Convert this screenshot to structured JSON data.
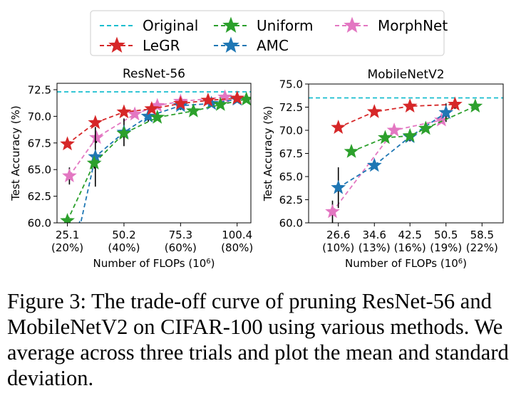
{
  "legend": {
    "entries": [
      {
        "label": "Original",
        "color": "#17becf",
        "dashed": true,
        "marker": false
      },
      {
        "label": "LeGR",
        "color": "#d62728",
        "dashed": true,
        "marker": true
      },
      {
        "label": "Uniform",
        "color": "#2ca02c",
        "dashed": true,
        "marker": true
      },
      {
        "label": "AMC",
        "color": "#1f77b4",
        "dashed": true,
        "marker": true
      },
      {
        "label": "MorphNet",
        "color": "#e377c2",
        "dashed": true,
        "marker": true
      }
    ]
  },
  "chart_data": [
    {
      "type": "line",
      "title": "ResNet-56",
      "xlabel": "Number of FLOPs (10",
      "xlabel_sup": "6",
      "xlabel_close": ")",
      "ylabel": "Test Accuracy (%)",
      "xlim": [
        20.5,
        106.5
      ],
      "ylim": [
        60.0,
        73.1
      ],
      "xticks": [
        {
          "value": 25.1,
          "label": "25.1",
          "sub": "(20%)"
        },
        {
          "value": 50.2,
          "label": "50.2",
          "sub": "(40%)"
        },
        {
          "value": 75.3,
          "label": "75.3",
          "sub": "(60%)"
        },
        {
          "value": 100.4,
          "label": "100.4",
          "sub": "(80%)"
        }
      ],
      "yticks": [
        {
          "value": 60.0,
          "label": "60.0"
        },
        {
          "value": 62.5,
          "label": "62.5"
        },
        {
          "value": 65.0,
          "label": "65.0"
        },
        {
          "value": 67.5,
          "label": "67.5"
        },
        {
          "value": 70.0,
          "label": "70.0"
        },
        {
          "value": 72.5,
          "label": "72.5"
        }
      ],
      "baseline": {
        "name": "Original",
        "y": 72.3
      },
      "series": [
        {
          "name": "LeGR",
          "x": [
            25.1,
            37.5,
            50.2,
            62.5,
            75.3,
            87.5,
            100.4
          ],
          "y": [
            67.4,
            69.4,
            70.4,
            70.7,
            71.2,
            71.5,
            71.7
          ],
          "err": [
            0.3,
            0.3,
            0.3,
            0.3,
            0.2,
            0.2,
            0.2
          ]
        },
        {
          "name": "Uniform",
          "x": [
            25.1,
            37.0,
            50.2,
            65.0,
            81.0,
            93.0,
            104.5
          ],
          "y": [
            60.2,
            65.6,
            68.4,
            69.9,
            70.5,
            71.1,
            71.6
          ],
          "err": [
            0.2,
            0.5,
            0.4,
            0.3,
            0.2,
            0.2,
            0.2
          ]
        },
        {
          "name": "AMC",
          "x": [
            30.5,
            37.5,
            50.2,
            61.0,
            75.3,
            89.0,
            100.4
          ],
          "y": [
            59.5,
            66.2,
            68.5,
            70.0,
            71.0,
            71.2,
            71.6
          ],
          "err": [
            0.0,
            2.8,
            1.3,
            0.5,
            0.4,
            0.3,
            0.2
          ]
        },
        {
          "name": "MorphNet",
          "x": [
            26.0,
            38.0,
            55.0,
            65.0,
            75.3,
            95.0
          ],
          "y": [
            64.4,
            68.0,
            70.2,
            71.0,
            71.4,
            71.8
          ],
          "err": [
            0.8,
            0.5,
            0.3,
            0.3,
            0.2,
            0.2
          ]
        }
      ]
    },
    {
      "type": "line",
      "title": "MobileNetV2",
      "xlabel": "Number of FLOPs (10",
      "xlabel_sup": "6",
      "xlabel_close": ")",
      "ylabel": "Test Accuracy (%)",
      "xlim": [
        20.0,
        63.2
      ],
      "ylim": [
        60.0,
        75.0
      ],
      "xticks": [
        {
          "value": 26.6,
          "label": "26.6",
          "sub": "(10%)"
        },
        {
          "value": 34.6,
          "label": "34.6",
          "sub": "(13%)"
        },
        {
          "value": 42.5,
          "label": "42.5",
          "sub": "(16%)"
        },
        {
          "value": 50.5,
          "label": "50.5",
          "sub": "(19%)"
        },
        {
          "value": 58.5,
          "label": "58.5",
          "sub": "(22%)"
        }
      ],
      "yticks": [
        {
          "value": 60.0,
          "label": "60.0"
        },
        {
          "value": 62.5,
          "label": "62.5"
        },
        {
          "value": 65.0,
          "label": "65.0"
        },
        {
          "value": 67.5,
          "label": "67.5"
        },
        {
          "value": 70.0,
          "label": "70.0"
        },
        {
          "value": 72.5,
          "label": "72.5"
        },
        {
          "value": 75.0,
          "label": "75.0"
        }
      ],
      "baseline": {
        "name": "Original",
        "y": 73.5
      },
      "series": [
        {
          "name": "LeGR",
          "x": [
            26.6,
            34.6,
            42.5,
            52.5
          ],
          "y": [
            70.3,
            72.0,
            72.6,
            72.8
          ],
          "err": [
            0.2,
            0.2,
            0.2,
            0.5
          ]
        },
        {
          "name": "Uniform",
          "x": [
            29.5,
            37.0,
            42.5,
            46.0,
            57.0
          ],
          "y": [
            67.7,
            69.2,
            69.4,
            70.2,
            72.6
          ],
          "err": [
            0.2,
            0.2,
            0.2,
            0.2,
            0.2
          ]
        },
        {
          "name": "AMC",
          "x": [
            26.6,
            34.6,
            42.5,
            50.5
          ],
          "y": [
            63.8,
            66.2,
            69.3,
            71.9
          ],
          "err": [
            2.2,
            0.3,
            0.5,
            1.0
          ]
        },
        {
          "name": "MorphNet",
          "x": [
            25.3,
            39.0,
            49.5
          ],
          "y": [
            61.2,
            70.0,
            71.1
          ],
          "err": [
            1.2,
            0.3,
            0.3
          ]
        }
      ]
    }
  ],
  "caption": "Figure 3: The trade-off curve of pruning ResNet-56 and MobileNetV2 on CIFAR-100 using various methods. We average across three trials and plot the mean and standard deviation."
}
